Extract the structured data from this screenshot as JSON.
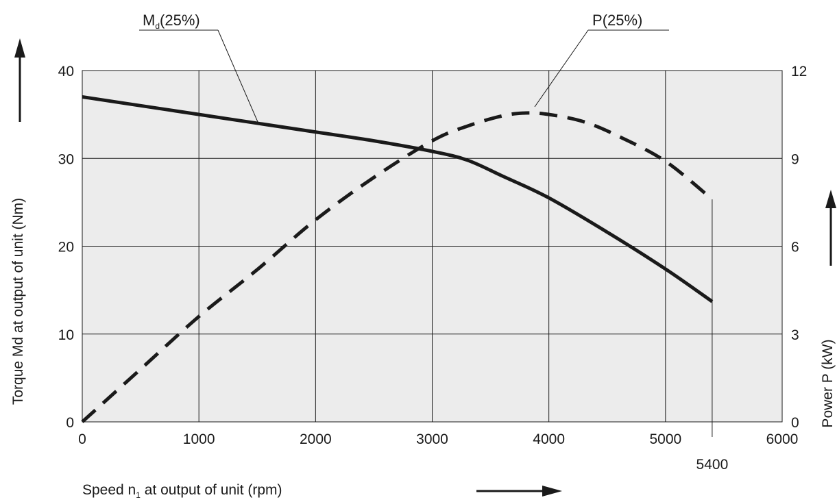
{
  "chart_data": {
    "type": "line",
    "xlabel": {
      "main": "Speed n",
      "sub": "1",
      "rest": " at output of unit (rpm)"
    },
    "ylabel_left": "Torque Md at output of unit (Nm)",
    "ylabel_right": "Power P (kW)",
    "xlim": [
      0,
      6000
    ],
    "ylim_left": [
      0,
      40
    ],
    "ylim_right": [
      0,
      12
    ],
    "x_ticks": [
      "0",
      "1000",
      "2000",
      "3000",
      "4000",
      "5000",
      "6000"
    ],
    "y_left_ticks": [
      "0",
      "10",
      "20",
      "30",
      "40"
    ],
    "y_right_ticks": [
      "0",
      "3",
      "6",
      "9",
      "12"
    ],
    "extra_x_tick": {
      "value": 5400,
      "label": "5400"
    },
    "grid": true,
    "background": "#ececec",
    "series": [
      {
        "name": {
          "main": "M",
          "sub": "d",
          "rest": "(25%)"
        },
        "axis": "left",
        "style": "solid",
        "color": "#1a1a1a",
        "x": [
          0,
          500,
          1000,
          1500,
          2000,
          2500,
          3000,
          3300,
          3600,
          4000,
          4500,
          5000,
          5400
        ],
        "y": [
          37,
          36,
          35,
          34,
          33,
          32,
          30.8,
          29.8,
          28,
          25.5,
          21.6,
          17.4,
          13.7
        ]
      },
      {
        "name": {
          "main": "P",
          "sub": "",
          "rest": "(25%)"
        },
        "axis": "right",
        "style": "dashed",
        "color": "#1a1a1a",
        "x": [
          0,
          500,
          1000,
          1500,
          2000,
          2500,
          3000,
          3300,
          3600,
          3800,
          4000,
          4300,
          4600,
          5000,
          5400
        ],
        "y": [
          0,
          1.8,
          3.6,
          5.2,
          6.9,
          8.35,
          9.6,
          10.1,
          10.45,
          10.55,
          10.5,
          10.25,
          9.75,
          8.9,
          7.6
        ]
      }
    ]
  }
}
